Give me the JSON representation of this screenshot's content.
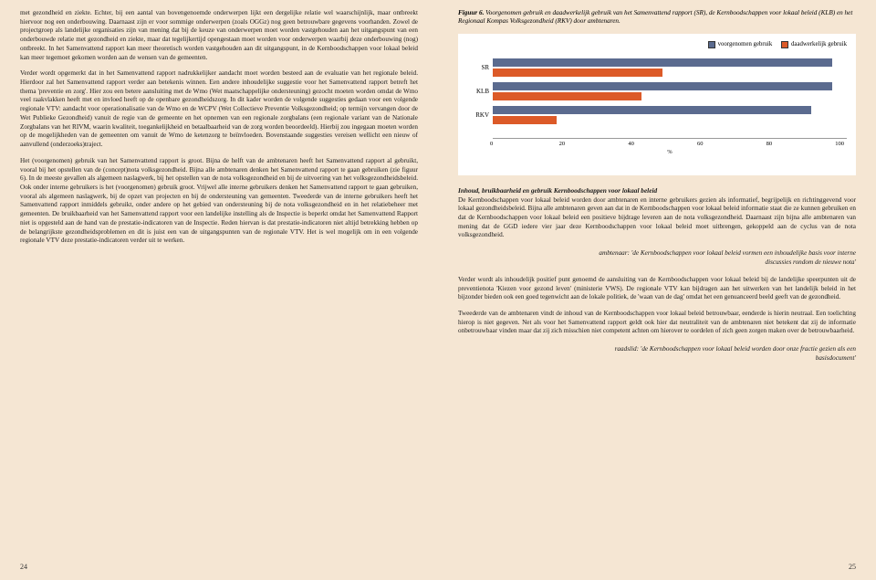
{
  "left": {
    "p1": "met gezondheid en ziekte. Echter, bij een aantal van bovengenoemde onderwerpen lijkt een dergelijke relatie wel waarschijnlijk, maar ontbreekt hiervoor nog een onderbouwing. Daarnaast zijn er voor sommige onderwerpen (zoals OGGz) nog geen betrouwbare gegevens voorhanden. Zowel de projectgroep als landelijke organisaties zijn van mening dat bij de keuze van onderwerpen moet worden vastgehouden aan het uitgangspunt van een onderbouwde relatie met gezondheid en ziekte, maar dat tegelijkertijd opengestaan moet worden voor onderwerpen waarbij deze onderbouwing (nog) ontbreekt. In het Samenvattend rapport kan meer theoretisch worden vastgehouden aan dit uitgangspunt, in de Kernboodschappen voor lokaal beleid kan meer tegemoet gekomen worden aan de wensen van de gemeenten.",
    "p2": "Verder wordt opgemerkt dat in het Samenvattend rapport nadrukkelijker aandacht moet worden besteed aan de evaluatie van het regionale beleid. Hierdoor zal het Samenvattend rapport verder aan betekenis winnen. Een andere inhoudelijke suggestie voor het Samenvattend rapport betreft het thema 'preventie en zorg'. Hier zou een betere aansluiting met de Wmo (Wet maatschappelijke ondersteuning) gezocht moeten worden omdat de Wmo veel raakvlakken heeft met en invloed heeft op de openbare gezondheidszorg. In dit kader worden de volgende suggesties gedaan voor een volgende regionale VTV: aandacht voor operationalisatie van de Wmo en de WCPV (Wet Collectieve Preventie Volksgezondheid; op termijn vervangen door de Wet Publieke Gezondheid) vanuit de regie van de gemeente en het opnemen van een regionale zorgbalans (een regionale variant van de Nationale Zorgbalans van het RIVM, waarin kwaliteit, toegankelijkheid en betaalbaarheid van de zorg worden beoordeeld). Hierbij zou ingegaan moeten worden op de mogelijkheden van de gemeenten om vanuit de Wmo de ketenzorg te beïnvloeden. Bovenstaande suggesties vereisen wellicht een nieuw of aanvullend (onderzoeks)traject.",
    "p3": "Het (voorgenomen) gebruik van het Samenvattend rapport is groot. Bijna de helft van de ambtenaren heeft het Samenvattend rapport al gebruikt, vooral bij het opstellen van de (concept)nota volksgezondheid. Bijna alle ambtenaren denken het Samenvattend rapport te gaan gebruiken (zie figuur 6). In de meeste gevallen als algemeen naslagwerk, bij het opstellen van de nota volksgezondheid en bij de uitvoering van het volksgezondheidsbeleid. Ook onder interne gebruikers is het (voorgenomen) gebruik groot. Vrijwel alle interne gebruikers denken het Samenvattend rapport te gaan gebruiken, vooral als algemeen naslagwerk, bij de opzet van projecten en bij de ondersteuning van gemeenten. Tweederde van de interne gebruikers heeft het Samenvattend rapport inmiddels gebruikt, onder andere op het gebied van ondersteuning bij de nota volksgezondheid en in het relatiebeheer met gemeenten. De bruikbaarheid van het Samenvattend rapport voor een landelijke instelling als de Inspectie is beperkt omdat het Samenvattend Rapport niet is opgesteld aan de hand van de prestatie-indicatoren van de Inspectie. Reden hiervan is dat prestatie-indicatoren niet altijd betrekking hebben op de belangrijkste gezondheidsproblemen en dit is juist een van de uitgangspunten van de regionale VTV. Het is wel mogelijk om in een volgende regionale VTV deze prestatie-indicatoren verder uit te werken.",
    "pagenum": "24"
  },
  "right": {
    "figure": {
      "num": "Figuur 6.",
      "caption": "Voorgenomen gebruik en daadwerkelijk gebruik van het Samenvattend rapport (SR), de Kernboodschappen voor lokaal beleid (KLB) en het Regionaal Kompas Volksgezondheid (RKV) door ambtenaren."
    },
    "chart": {
      "legend": {
        "a": "voorgenomen gebruik",
        "b": "daadwerkelijk gebruik"
      },
      "colors": {
        "a": "#5b6b8f",
        "b": "#dc5a28"
      },
      "categories": [
        "SR",
        "KLB",
        "RKV"
      ],
      "series_a": [
        96,
        96,
        90
      ],
      "series_b": [
        48,
        42,
        18
      ],
      "xmax": 100,
      "ticks": [
        "0",
        "20",
        "40",
        "60",
        "80",
        "100"
      ],
      "xlabel": "%"
    },
    "section1_head": "Inhoud, bruikbaarheid en gebruik Kernboodschappen voor lokaal beleid",
    "p1": "De Kernboodschappen voor lokaal beleid worden door ambtenaren en interne gebruikers gezien als informatief, begrijpelijk en richtinggevend voor lokaal gezondheidsbeleid. Bijna alle ambtenaren geven aan dat in de Kernboodschappen voor lokaal beleid informatie staat die ze kunnen gebruiken en dat de Kernboodschappen voor lokaal beleid een positieve bijdrage leveren aan de nota volksgezondheid. Daarnaast zijn bijna alle ambtenaren van mening dat de GGD iedere vier jaar deze Kernboodschappen voor lokaal beleid moet uitbrengen, gekoppeld aan de cyclus van de nota volksgezondheid.",
    "quote1": "ambtenaar: 'de Kernboodschappen voor lokaal beleid vormen een inhoudelijke basis voor interne discussies rondom de nieuwe nota'",
    "p2": "Verder wordt als inhoudelijk positief punt genoemd de aansluiting van de Kernboodschappen voor lokaal beleid bij de landelijke speerpunten uit de preventienota 'Kiezen voor gezond leven' (ministerie VWS). De regionale VTV kan bijdragen aan het uitwerken van het landelijk beleid in het bijzonder bieden ook een goed tegenwicht aan de lokale politiek, de 'waan van de dag' omdat het een genuanceerd beeld geeft van de gezondheid.",
    "p3": "Tweederde van de ambtenaren vindt de inhoud van de Kernboodschappen voor lokaal beleid betrouwbaar, eenderde is hierin neutraal. Een toelichting hierop is niet gegeven. Net als voor het Samenvattend rapport geldt ook hier dat neutraliteit van de ambtenaren niet betekent dat zij de informatie onbetrouwbaar vinden maar dat zij zich misschien niet competent achten om hierover te oordelen of zich geen zorgen maken over de betrouwbaarheid.",
    "quote2": "raadslid: 'de Kernboodschappen voor lokaal beleid worden door onze fractie gezien als een basisdocument'",
    "pagenum": "25"
  }
}
